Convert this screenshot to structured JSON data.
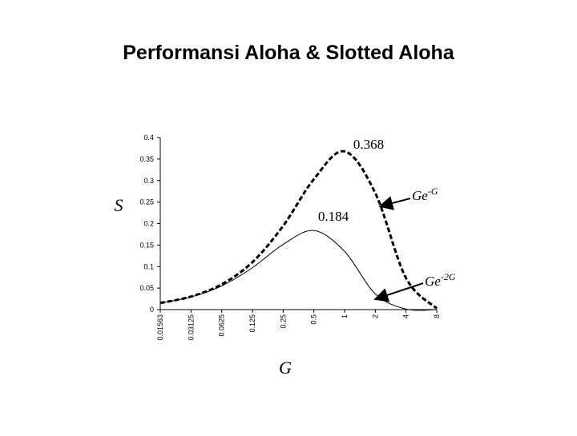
{
  "title": "Performansi Aloha & Slotted Aloha",
  "chart_data": {
    "type": "line",
    "xlabel": "G",
    "ylabel": "S",
    "x_scale": "log2",
    "categories": [
      "0.01563",
      "0.03125",
      "0.0625",
      "0.125",
      "0.25",
      "0.5",
      "1",
      "2",
      "4",
      "8"
    ],
    "y_ticks": [
      "0.4",
      "0.35",
      "0.3",
      "0.25",
      "0.2",
      "0.15",
      "0.1",
      "0.05",
      "0"
    ],
    "ylim": [
      0,
      0.4
    ],
    "series": [
      {
        "name": "Ge-G",
        "style": "dashed",
        "x": [
          0.01563,
          0.03125,
          0.0625,
          0.125,
          0.25,
          0.5,
          1,
          2,
          4,
          8
        ],
        "y": [
          0.0154,
          0.0303,
          0.0588,
          0.1103,
          0.1947,
          0.3033,
          0.3679,
          0.2707,
          0.0733,
          0.0027
        ]
      },
      {
        "name": "Ge-2G",
        "style": "solid",
        "x": [
          0.01563,
          0.03125,
          0.0625,
          0.125,
          0.25,
          0.5,
          1,
          2,
          4,
          8
        ],
        "y": [
          0.0151,
          0.0294,
          0.0551,
          0.0974,
          0.1516,
          0.1839,
          0.1353,
          0.0366,
          0.0013,
          0.0
        ]
      }
    ],
    "annotations": [
      {
        "text": "0.368",
        "target_x": 1,
        "target_y": 0.368
      },
      {
        "text": "0.184",
        "target_x": 0.5,
        "target_y": 0.184
      }
    ],
    "curve_labels": [
      {
        "base": "Ge",
        "sup": "-G",
        "series": "Ge-G"
      },
      {
        "base": "Ge",
        "sup": "-2G",
        "series": "Ge-2G"
      }
    ]
  }
}
